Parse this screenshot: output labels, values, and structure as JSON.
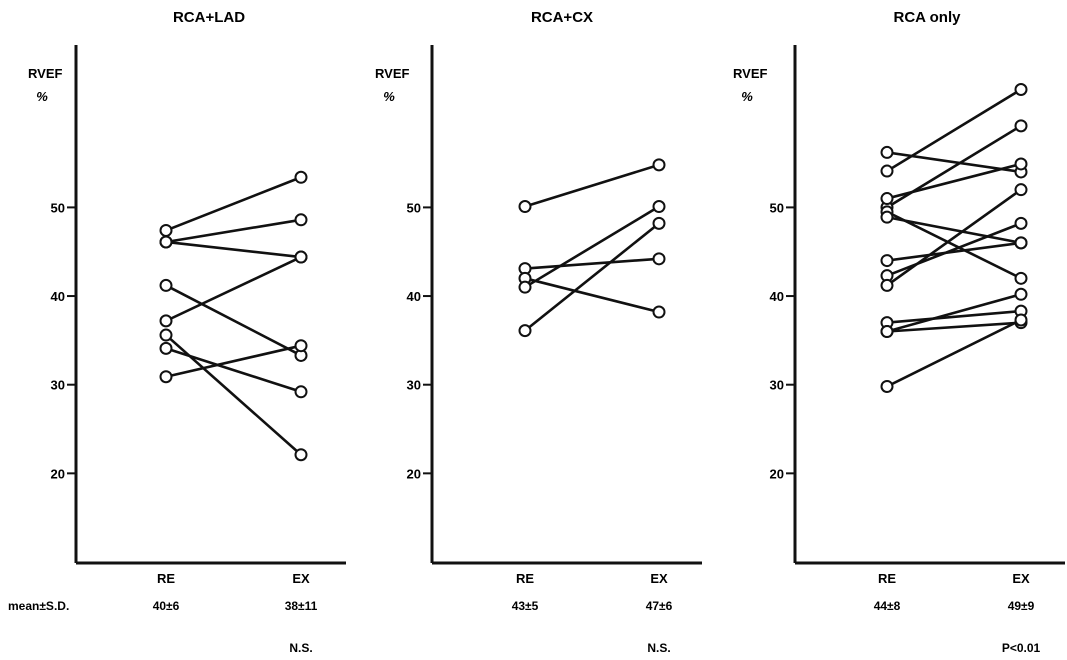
{
  "chart_data": [
    {
      "type": "line",
      "title": "RCA+LAD",
      "ylabel": "RVEF",
      "yunit": "%",
      "categories": [
        "RE",
        "EX"
      ],
      "yticks": [
        20,
        30,
        40,
        50
      ],
      "ylim": [
        10,
        65
      ],
      "series": [
        {
          "values": [
            47.4,
            53.4
          ]
        },
        {
          "values": [
            46.1,
            48.6
          ]
        },
        {
          "values": [
            46.1,
            44.4
          ]
        },
        {
          "values": [
            41.2,
            33.3
          ]
        },
        {
          "values": [
            37.2,
            44.4
          ]
        },
        {
          "values": [
            35.6,
            22.1
          ]
        },
        {
          "values": [
            34.1,
            29.2
          ]
        },
        {
          "values": [
            30.9,
            34.4
          ]
        }
      ],
      "mean_sd": [
        "40±6",
        "38±11"
      ],
      "significance": "N.S."
    },
    {
      "type": "line",
      "title": "RCA+CX",
      "ylabel": "RVEF",
      "yunit": "%",
      "categories": [
        "RE",
        "EX"
      ],
      "yticks": [
        20,
        30,
        40,
        50
      ],
      "ylim": [
        10,
        65
      ],
      "series": [
        {
          "values": [
            50.1,
            54.8
          ]
        },
        {
          "values": [
            43.1,
            44.2
          ]
        },
        {
          "values": [
            42.0,
            38.2
          ]
        },
        {
          "values": [
            41.0,
            50.1
          ]
        },
        {
          "values": [
            36.1,
            48.2
          ]
        }
      ],
      "mean_sd": [
        "43±5",
        "47±6"
      ],
      "significance": "N.S."
    },
    {
      "type": "line",
      "title": "RCA only",
      "ylabel": "RVEF",
      "yunit": "%",
      "categories": [
        "RE",
        "EX"
      ],
      "yticks": [
        20,
        30,
        40,
        50
      ],
      "ylim": [
        10,
        65
      ],
      "series": [
        {
          "values": [
            56.2,
            54.0
          ]
        },
        {
          "values": [
            54.1,
            63.3
          ]
        },
        {
          "values": [
            50.0,
            59.2
          ]
        },
        {
          "values": [
            51.0,
            54.9
          ]
        },
        {
          "values": [
            49.5,
            42.0
          ]
        },
        {
          "values": [
            48.9,
            46.0
          ]
        },
        {
          "values": [
            44.0,
            46.0
          ]
        },
        {
          "values": [
            42.3,
            48.2
          ]
        },
        {
          "values": [
            41.2,
            52.0
          ]
        },
        {
          "values": [
            37.0,
            38.3
          ]
        },
        {
          "values": [
            36.0,
            40.2
          ]
        },
        {
          "values": [
            36.0,
            37.0
          ]
        },
        {
          "values": [
            29.8,
            37.3
          ]
        }
      ],
      "mean_sd": [
        "44±8",
        "49±9"
      ],
      "significance": "P<0.01"
    }
  ],
  "row_label": "mean±S.D."
}
